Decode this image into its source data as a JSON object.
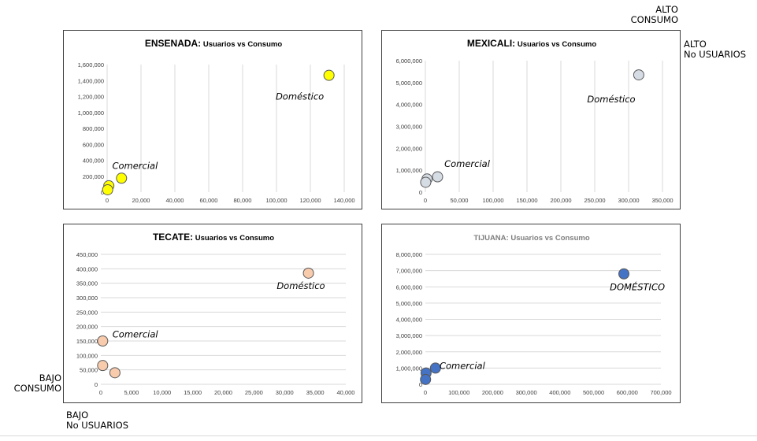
{
  "corner_labels": {
    "top_right": [
      "ALTO",
      "CONSUMO"
    ],
    "right": [
      "ALTO",
      "No USUARIOS"
    ],
    "bottom_left_y": [
      "BAJO",
      "CONSUMO"
    ],
    "bottom_left_x": [
      "BAJO",
      "No USUARIOS"
    ]
  },
  "colors": {
    "ensenada": "#ffff00",
    "mexicali": "#d6dce4",
    "tecate": "#f8cbad",
    "tijuana": "#4472c4"
  },
  "chart_data": [
    {
      "type": "scatter",
      "title_bold": "ENSENADA:",
      "title_rest": " Usuarios vs Consumo",
      "title_color": "#000000",
      "xlim": [
        0,
        140000
      ],
      "xticks": [
        0,
        20000,
        40000,
        60000,
        80000,
        100000,
        120000,
        140000
      ],
      "ylim": [
        0,
        1600000
      ],
      "yticks": [
        0,
        200000,
        400000,
        600000,
        800000,
        1000000,
        1200000,
        1400000,
        1600000
      ],
      "grid": "vertical",
      "point_color": "#ffff00",
      "points": [
        {
          "x": 131000,
          "y": 1465000
        },
        {
          "x": 8500,
          "y": 175000
        },
        {
          "x": 1000,
          "y": 80000
        },
        {
          "x": 300,
          "y": 30000
        }
      ],
      "annotations": [
        {
          "text": "Doméstico",
          "x": 128000,
          "y": 1160000,
          "anchor": "end"
        },
        {
          "text": "Comercial",
          "x": 3000,
          "y": 290000,
          "anchor": "start"
        }
      ]
    },
    {
      "type": "scatter",
      "title_bold": "MEXICALI:",
      "title_rest": " Usuarios vs Consumo",
      "title_color": "#000000",
      "xlim": [
        0,
        350000
      ],
      "xticks": [
        0,
        50000,
        100000,
        150000,
        200000,
        250000,
        300000,
        350000
      ],
      "ylim": [
        0,
        6000000
      ],
      "yticks": [
        0,
        1000000,
        2000000,
        3000000,
        4000000,
        5000000,
        6000000
      ],
      "grid": "vertical",
      "point_color": "#d6dce4",
      "points": [
        {
          "x": 315000,
          "y": 5350000
        },
        {
          "x": 18000,
          "y": 700000
        },
        {
          "x": 2500,
          "y": 600000
        },
        {
          "x": 500,
          "y": 450000
        }
      ],
      "annotations": [
        {
          "text": "Doméstico",
          "x": 310000,
          "y": 4100000,
          "anchor": "end"
        },
        {
          "text": "Comercial",
          "x": 28000,
          "y": 1150000,
          "anchor": "start"
        }
      ]
    },
    {
      "type": "scatter",
      "title_bold": "TECATE:",
      "title_rest": " Usuarios vs Consumo",
      "title_color": "#000000",
      "xlim": [
        0,
        40000
      ],
      "xticks": [
        0,
        5000,
        10000,
        15000,
        20000,
        25000,
        30000,
        35000,
        40000
      ],
      "ylim": [
        0,
        450000
      ],
      "yticks": [
        0,
        50000,
        100000,
        150000,
        200000,
        250000,
        300000,
        350000,
        400000,
        450000
      ],
      "grid": "horizontal",
      "point_color": "#f8cbad",
      "points": [
        {
          "x": 33900,
          "y": 385000
        },
        {
          "x": 300,
          "y": 150000
        },
        {
          "x": 300,
          "y": 65000
        },
        {
          "x": 2300,
          "y": 40000
        }
      ],
      "annotations": [
        {
          "text": "Doméstico",
          "x": 36600,
          "y": 330000,
          "anchor": "end"
        },
        {
          "text": "Comercial",
          "x": 1900,
          "y": 162000,
          "anchor": "start"
        }
      ]
    },
    {
      "type": "scatter",
      "title_bold": "",
      "title_rest": "TIJUANA:  Usuarios vs Consumo",
      "title_color": "#7f7f7f",
      "xlim": [
        0,
        700000
      ],
      "xticks": [
        0,
        100000,
        200000,
        300000,
        400000,
        500000,
        600000,
        700000
      ],
      "ylim": [
        0,
        8000000
      ],
      "yticks": [
        0,
        1000000,
        2000000,
        3000000,
        4000000,
        5000000,
        6000000,
        7000000,
        8000000
      ],
      "grid": "horizontal",
      "point_color": "#4472c4",
      "points": [
        {
          "x": 590000,
          "y": 6800000
        },
        {
          "x": 30000,
          "y": 1000000
        },
        {
          "x": 2000,
          "y": 700000
        },
        {
          "x": 500,
          "y": 300000
        }
      ],
      "annotations": [
        {
          "text": "DOMÉSTICO",
          "x": 630000,
          "y": 5800000,
          "anchor": "middle"
        },
        {
          "text": "Comercial",
          "x": 42000,
          "y": 950000,
          "anchor": "start"
        }
      ]
    }
  ]
}
